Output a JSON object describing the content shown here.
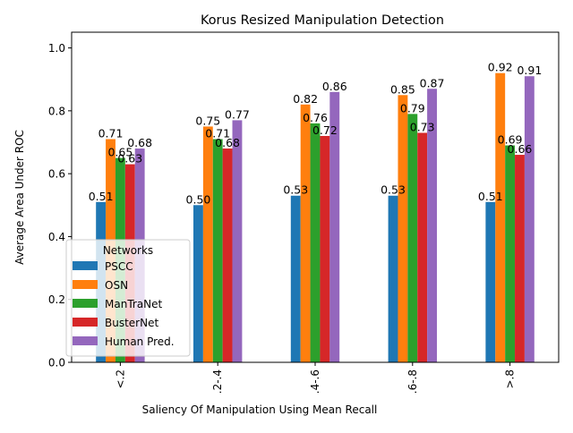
{
  "chart_data": {
    "type": "bar",
    "title": "Korus Resized Manipulation Detection",
    "xlabel": "Saliency Of Manipulation Using Mean Recall",
    "ylabel": "Average Area Under ROC",
    "categories": [
      "<.2",
      ".2-.4",
      ".4-.6",
      ".6-.8",
      ">.8"
    ],
    "ylim": [
      0,
      1.05
    ],
    "yticks": [
      "0.0",
      "0.2",
      "0.4",
      "0.6",
      "0.8",
      "1.0"
    ],
    "grid": false,
    "legend": {
      "title": "Networks",
      "placement": "lower-left"
    },
    "series": [
      {
        "name": "PSCC",
        "color": "#1f77b4",
        "values": [
          0.51,
          0.5,
          0.53,
          0.53,
          0.51
        ],
        "labels": [
          "0.51",
          "0.50",
          "0.53",
          "0.53",
          "0.51"
        ]
      },
      {
        "name": "OSN",
        "color": "#ff7f0e",
        "values": [
          0.71,
          0.75,
          0.82,
          0.85,
          0.92
        ],
        "labels": [
          "0.71",
          "0.75",
          "0.82",
          "0.85",
          "0.92"
        ]
      },
      {
        "name": "ManTraNet",
        "color": "#2ca02c",
        "values": [
          0.65,
          0.71,
          0.76,
          0.79,
          0.69
        ],
        "labels": [
          "0.65",
          "0.71",
          "0.76",
          "0.79",
          "0.69"
        ]
      },
      {
        "name": "BusterNet",
        "color": "#d62728",
        "values": [
          0.63,
          0.68,
          0.72,
          0.73,
          0.66
        ],
        "labels": [
          "0.63",
          "0.68",
          "0.72",
          "0.73",
          "0.66"
        ]
      },
      {
        "name": "Human Pred.",
        "color": "#9467bd",
        "values": [
          0.68,
          0.77,
          0.86,
          0.87,
          0.91
        ],
        "labels": [
          "0.68",
          "0.77",
          "0.86",
          "0.87",
          "0.91"
        ]
      }
    ]
  }
}
